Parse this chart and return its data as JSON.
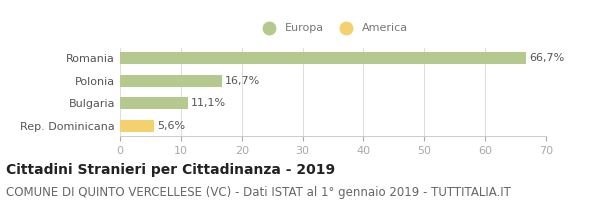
{
  "categories": [
    "Romania",
    "Polonia",
    "Bulgaria",
    "Rep. Dominicana"
  ],
  "values": [
    66.7,
    16.7,
    11.1,
    5.6
  ],
  "labels": [
    "66,7%",
    "16,7%",
    "11,1%",
    "5,6%"
  ],
  "colors": [
    "#b5c98e",
    "#b5c98e",
    "#b5c98e",
    "#f5d06e"
  ],
  "bar_color_europa": "#b5c98e",
  "bar_color_america": "#f5d06e",
  "legend_labels": [
    "Europa",
    "America"
  ],
  "xlim": [
    0,
    70
  ],
  "xticks": [
    0,
    10,
    20,
    30,
    40,
    50,
    60,
    70
  ],
  "title_bold": "Cittadini Stranieri per Cittadinanza - 2019",
  "subtitle": "COMUNE DI QUINTO VERCELLESE (VC) - Dati ISTAT al 1° gennaio 2019 - TUTTITALIA.IT",
  "background_color": "#ffffff",
  "label_fontsize": 8,
  "title_fontsize": 10,
  "subtitle_fontsize": 8.5
}
